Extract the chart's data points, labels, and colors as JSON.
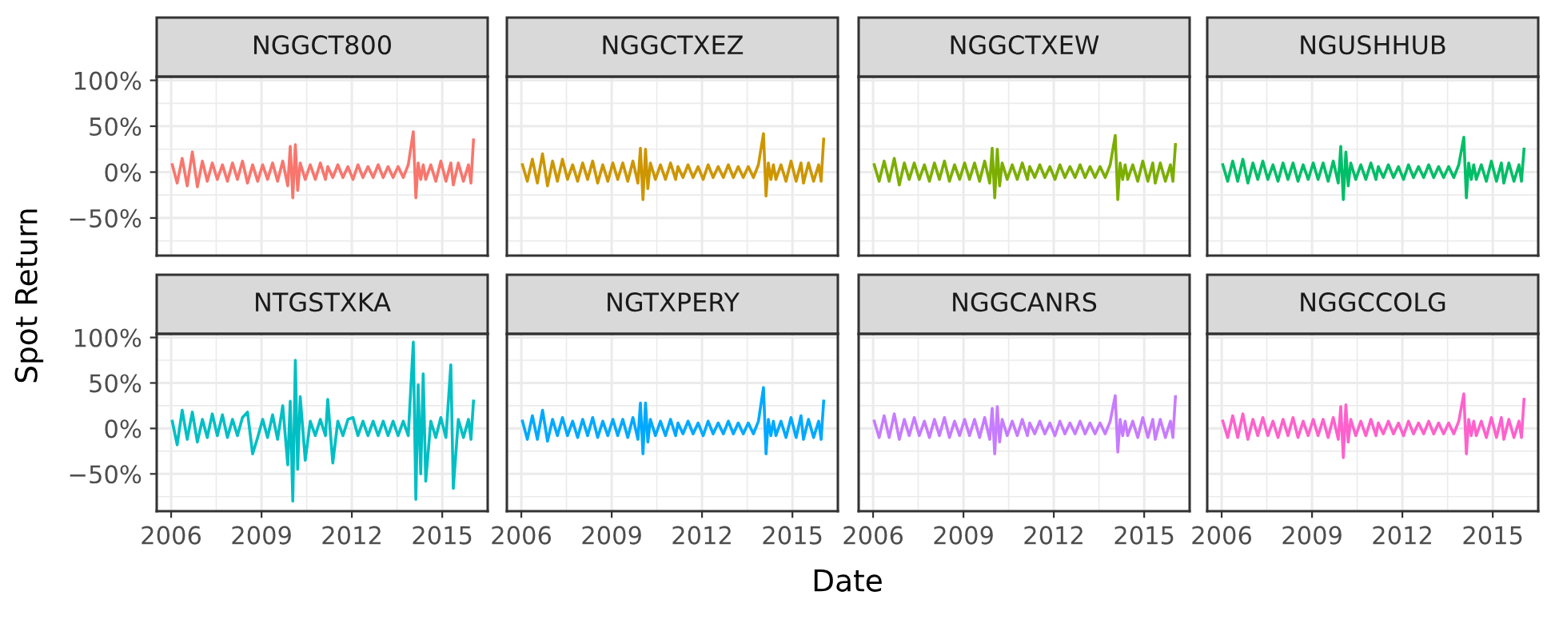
{
  "chart_data": [
    {
      "type": "line",
      "title": "NGGCT800",
      "ylabel": "Spot Return",
      "grid": true,
      "tick_labels": "y",
      "xlim": [
        "2005-07-10",
        "2016-07-05"
      ],
      "ylim": [
        -91,
        104
      ],
      "xticks": [
        "2006",
        {
          "value": "2007-07-02",
          "label": null
        },
        "2009",
        {
          "value": "2010-07-02",
          "label": null
        },
        "2012",
        {
          "value": "2013-07-02",
          "label": null
        },
        "2015"
      ],
      "yticks": [
        {
          "value": -75,
          "label": null
        },
        {
          "value": -50,
          "label": "−50%"
        },
        {
          "value": -25,
          "label": null
        },
        {
          "value": 0,
          "label": "0%"
        },
        {
          "value": 25,
          "label": null
        },
        {
          "value": 50,
          "label": "50%"
        },
        {
          "value": 75,
          "label": null
        },
        {
          "value": 100,
          "label": "100%"
        }
      ],
      "x": [
        "2006-01",
        "2006-03",
        "2006-05",
        "2006-07",
        "2006-09",
        "2006-11",
        "2007-01",
        "2007-03",
        "2007-05",
        "2007-07",
        "2007-09",
        "2007-11",
        "2008-01",
        "2008-03",
        "2008-05",
        "2008-07",
        "2008-09",
        "2008-11",
        "2009-01",
        "2009-03",
        "2009-05",
        "2009-07",
        "2009-09",
        "2009-11",
        "2009-12",
        "2010-01",
        "2010-02",
        "2010-03",
        "2010-04",
        "2010-06",
        "2010-08",
        "2010-10",
        "2010-12",
        "2011-02",
        "2011-03",
        "2011-05",
        "2011-07",
        "2011-09",
        "2011-11",
        "2012-01",
        "2012-03",
        "2012-05",
        "2012-07",
        "2012-09",
        "2012-11",
        "2013-01",
        "2013-03",
        "2013-05",
        "2013-07",
        "2013-09",
        "2013-11",
        "2014-01",
        "2014-02",
        "2014-03",
        "2014-04",
        "2014-05",
        "2014-06",
        "2014-08",
        "2014-10",
        "2014-12",
        "2015-02",
        "2015-04",
        "2015-05",
        "2015-07",
        "2015-09",
        "2015-11",
        "2015-12",
        "2016-01"
      ],
      "series": [
        {
          "color": "#f8766d",
          "values": [
            8,
            -12,
            15,
            -15,
            22,
            -16,
            12,
            -10,
            10,
            -8,
            8,
            -10,
            10,
            -8,
            12,
            -12,
            8,
            -10,
            8,
            -8,
            10,
            -10,
            12,
            -15,
            28,
            -28,
            30,
            -20,
            10,
            -8,
            8,
            -8,
            10,
            -8,
            6,
            -6,
            8,
            -6,
            6,
            -8,
            8,
            -6,
            6,
            -6,
            8,
            -6,
            6,
            -6,
            6,
            -6,
            8,
            44,
            -28,
            10,
            -8,
            8,
            -8,
            8,
            -10,
            12,
            -10,
            10,
            -14,
            10,
            -10,
            8,
            -12,
            35
          ]
        }
      ]
    },
    {
      "type": "line",
      "title": "NGGCTXEZ",
      "grid": true,
      "tick_labels": false,
      "xlim": [
        "2005-07-10",
        "2016-07-05"
      ],
      "ylim": [
        -91,
        104
      ],
      "xticks": [
        "2006",
        {
          "value": "2007-07-02",
          "label": null
        },
        "2009",
        {
          "value": "2010-07-02",
          "label": null
        },
        "2012",
        {
          "value": "2013-07-02",
          "label": null
        },
        "2015"
      ],
      "yticks": [
        {
          "value": -75,
          "label": null
        },
        -50,
        {
          "value": -25,
          "label": null
        },
        0,
        {
          "value": 25,
          "label": null
        },
        50,
        {
          "value": 75,
          "label": null
        },
        100
      ],
      "x": [
        "2006-01",
        "2006-03",
        "2006-05",
        "2006-07",
        "2006-09",
        "2006-11",
        "2007-01",
        "2007-03",
        "2007-05",
        "2007-07",
        "2007-09",
        "2007-11",
        "2008-01",
        "2008-03",
        "2008-05",
        "2008-07",
        "2008-09",
        "2008-11",
        "2009-01",
        "2009-03",
        "2009-05",
        "2009-07",
        "2009-09",
        "2009-11",
        "2009-12",
        "2010-01",
        "2010-02",
        "2010-03",
        "2010-04",
        "2010-06",
        "2010-08",
        "2010-10",
        "2010-12",
        "2011-02",
        "2011-03",
        "2011-05",
        "2011-07",
        "2011-09",
        "2011-11",
        "2012-01",
        "2012-03",
        "2012-05",
        "2012-07",
        "2012-09",
        "2012-11",
        "2013-01",
        "2013-03",
        "2013-05",
        "2013-07",
        "2013-09",
        "2013-11",
        "2014-01",
        "2014-02",
        "2014-03",
        "2014-04",
        "2014-05",
        "2014-06",
        "2014-08",
        "2014-10",
        "2014-12",
        "2015-02",
        "2015-04",
        "2015-05",
        "2015-07",
        "2015-09",
        "2015-11",
        "2015-12",
        "2016-01"
      ],
      "series": [
        {
          "color": "#cd9600",
          "values": [
            8,
            -10,
            14,
            -12,
            20,
            -15,
            12,
            -10,
            14,
            -8,
            8,
            -10,
            10,
            -8,
            12,
            -12,
            8,
            -10,
            10,
            -8,
            10,
            -10,
            12,
            -12,
            26,
            -30,
            25,
            -18,
            10,
            -8,
            8,
            -8,
            10,
            -8,
            6,
            -6,
            8,
            -6,
            6,
            -8,
            8,
            -6,
            6,
            -6,
            8,
            -6,
            6,
            -6,
            6,
            -6,
            8,
            42,
            -26,
            10,
            -8,
            8,
            -8,
            8,
            -10,
            12,
            -10,
            10,
            -12,
            10,
            -10,
            8,
            -10,
            36
          ]
        }
      ]
    },
    {
      "type": "line",
      "title": "NGGCTXEW",
      "grid": true,
      "tick_labels": false,
      "xlim": [
        "2005-07-10",
        "2016-07-05"
      ],
      "ylim": [
        -91,
        104
      ],
      "xticks": [
        "2006",
        {
          "value": "2007-07-02",
          "label": null
        },
        "2009",
        {
          "value": "2010-07-02",
          "label": null
        },
        "2012",
        {
          "value": "2013-07-02",
          "label": null
        },
        "2015"
      ],
      "yticks": [
        {
          "value": -75,
          "label": null
        },
        -50,
        {
          "value": -25,
          "label": null
        },
        0,
        {
          "value": 25,
          "label": null
        },
        50,
        {
          "value": 75,
          "label": null
        },
        100
      ],
      "x": [
        "2006-01",
        "2006-03",
        "2006-05",
        "2006-07",
        "2006-09",
        "2006-11",
        "2007-01",
        "2007-03",
        "2007-05",
        "2007-07",
        "2007-09",
        "2007-11",
        "2008-01",
        "2008-03",
        "2008-05",
        "2008-07",
        "2008-09",
        "2008-11",
        "2009-01",
        "2009-03",
        "2009-05",
        "2009-07",
        "2009-09",
        "2009-11",
        "2009-12",
        "2010-01",
        "2010-02",
        "2010-03",
        "2010-04",
        "2010-06",
        "2010-08",
        "2010-10",
        "2010-12",
        "2011-02",
        "2011-03",
        "2011-05",
        "2011-07",
        "2011-09",
        "2011-11",
        "2012-01",
        "2012-03",
        "2012-05",
        "2012-07",
        "2012-09",
        "2012-11",
        "2013-01",
        "2013-03",
        "2013-05",
        "2013-07",
        "2013-09",
        "2013-11",
        "2014-01",
        "2014-02",
        "2014-03",
        "2014-04",
        "2014-05",
        "2014-06",
        "2014-08",
        "2014-10",
        "2014-12",
        "2015-02",
        "2015-04",
        "2015-05",
        "2015-07",
        "2015-09",
        "2015-11",
        "2015-12",
        "2016-01"
      ],
      "series": [
        {
          "color": "#7cae00",
          "values": [
            8,
            -10,
            12,
            -10,
            15,
            -14,
            10,
            -8,
            10,
            -8,
            8,
            -10,
            10,
            -8,
            12,
            -10,
            8,
            -8,
            10,
            -8,
            10,
            -10,
            12,
            -12,
            26,
            -28,
            25,
            -15,
            10,
            -8,
            8,
            -8,
            10,
            -8,
            6,
            -6,
            8,
            -6,
            6,
            -8,
            8,
            -6,
            6,
            -6,
            8,
            -6,
            6,
            -6,
            6,
            -6,
            8,
            40,
            -30,
            10,
            -8,
            8,
            -8,
            8,
            -10,
            12,
            -10,
            10,
            -12,
            10,
            -10,
            8,
            -10,
            30
          ]
        }
      ]
    },
    {
      "type": "line",
      "title": "NGUSHHUB",
      "grid": true,
      "tick_labels": false,
      "xlim": [
        "2005-07-10",
        "2016-07-05"
      ],
      "ylim": [
        -91,
        104
      ],
      "xticks": [
        "2006",
        {
          "value": "2007-07-02",
          "label": null
        },
        "2009",
        {
          "value": "2010-07-02",
          "label": null
        },
        "2012",
        {
          "value": "2013-07-02",
          "label": null
        },
        "2015"
      ],
      "yticks": [
        {
          "value": -75,
          "label": null
        },
        -50,
        {
          "value": -25,
          "label": null
        },
        0,
        {
          "value": 25,
          "label": null
        },
        50,
        {
          "value": 75,
          "label": null
        },
        100
      ],
      "x": [
        "2006-01",
        "2006-03",
        "2006-05",
        "2006-07",
        "2006-09",
        "2006-11",
        "2007-01",
        "2007-03",
        "2007-05",
        "2007-07",
        "2007-09",
        "2007-11",
        "2008-01",
        "2008-03",
        "2008-05",
        "2008-07",
        "2008-09",
        "2008-11",
        "2009-01",
        "2009-03",
        "2009-05",
        "2009-07",
        "2009-09",
        "2009-11",
        "2009-12",
        "2010-01",
        "2010-02",
        "2010-03",
        "2010-04",
        "2010-06",
        "2010-08",
        "2010-10",
        "2010-12",
        "2011-02",
        "2011-03",
        "2011-05",
        "2011-07",
        "2011-09",
        "2011-11",
        "2012-01",
        "2012-03",
        "2012-05",
        "2012-07",
        "2012-09",
        "2012-11",
        "2013-01",
        "2013-03",
        "2013-05",
        "2013-07",
        "2013-09",
        "2013-11",
        "2014-01",
        "2014-02",
        "2014-03",
        "2014-04",
        "2014-05",
        "2014-06",
        "2014-08",
        "2014-10",
        "2014-12",
        "2015-02",
        "2015-04",
        "2015-05",
        "2015-07",
        "2015-09",
        "2015-11",
        "2015-12",
        "2016-01"
      ],
      "series": [
        {
          "color": "#00be67",
          "values": [
            8,
            -10,
            12,
            -10,
            14,
            -12,
            10,
            -8,
            12,
            -8,
            8,
            -10,
            10,
            -8,
            10,
            -10,
            8,
            -8,
            10,
            -8,
            10,
            -10,
            12,
            -12,
            28,
            -30,
            22,
            -15,
            10,
            -8,
            8,
            -8,
            10,
            -8,
            6,
            -6,
            8,
            -6,
            6,
            -8,
            8,
            -6,
            6,
            -6,
            8,
            -6,
            6,
            -6,
            6,
            -6,
            8,
            38,
            -28,
            10,
            -8,
            8,
            -8,
            8,
            -10,
            12,
            -10,
            10,
            -12,
            10,
            -10,
            8,
            -10,
            25
          ]
        }
      ]
    },
    {
      "type": "line",
      "title": "NTGSTXKA",
      "grid": true,
      "xlim": [
        "2005-07-10",
        "2016-07-05"
      ],
      "ylim": [
        -91,
        104
      ],
      "xticks": [
        "2006",
        {
          "value": "2007-07-02",
          "label": null
        },
        "2009",
        {
          "value": "2010-07-02",
          "label": null
        },
        "2012",
        {
          "value": "2013-07-02",
          "label": null
        },
        "2015"
      ],
      "yticks": [
        {
          "value": -75,
          "label": null
        },
        {
          "value": -50,
          "label": "−50%"
        },
        {
          "value": -25,
          "label": null
        },
        {
          "value": 0,
          "label": "0%"
        },
        {
          "value": 25,
          "label": null
        },
        {
          "value": 50,
          "label": "50%"
        },
        {
          "value": 75,
          "label": null
        },
        {
          "value": 100,
          "label": "100%"
        }
      ],
      "x": [
        "2006-01",
        "2006-03",
        "2006-05",
        "2006-07",
        "2006-09",
        "2006-11",
        "2007-01",
        "2007-03",
        "2007-05",
        "2007-07",
        "2007-09",
        "2007-11",
        "2008-01",
        "2008-03",
        "2008-05",
        "2008-07",
        "2008-09",
        "2008-11",
        "2009-01",
        "2009-03",
        "2009-05",
        "2009-07",
        "2009-09",
        "2009-11",
        "2009-12",
        "2010-01",
        "2010-02",
        "2010-03",
        "2010-04",
        "2010-06",
        "2010-08",
        "2010-10",
        "2010-12",
        "2011-02",
        "2011-03",
        "2011-05",
        "2011-07",
        "2011-09",
        "2011-11",
        "2012-01",
        "2012-03",
        "2012-05",
        "2012-07",
        "2012-09",
        "2012-11",
        "2013-01",
        "2013-03",
        "2013-05",
        "2013-07",
        "2013-09",
        "2013-11",
        "2014-01",
        "2014-02",
        "2014-03",
        "2014-04",
        "2014-05",
        "2014-06",
        "2014-08",
        "2014-10",
        "2014-12",
        "2015-02",
        "2015-04",
        "2015-05",
        "2015-07",
        "2015-09",
        "2015-11",
        "2015-12",
        "2016-01"
      ],
      "series": [
        {
          "color": "#00bfc4",
          "values": [
            8,
            -18,
            20,
            -12,
            18,
            -15,
            10,
            -10,
            16,
            -8,
            15,
            -10,
            10,
            -8,
            12,
            18,
            -28,
            -10,
            10,
            -10,
            15,
            -12,
            25,
            -40,
            30,
            -80,
            75,
            -45,
            35,
            -35,
            8,
            -8,
            10,
            -8,
            32,
            -38,
            8,
            -8,
            10,
            12,
            -8,
            8,
            -8,
            8,
            -8,
            8,
            -8,
            8,
            -8,
            8,
            -8,
            95,
            -78,
            48,
            -50,
            60,
            -58,
            8,
            -10,
            12,
            -10,
            70,
            -66,
            10,
            -10,
            10,
            -12,
            30
          ]
        }
      ]
    },
    {
      "type": "line",
      "title": "NGTXPERY",
      "xlabel": "Date",
      "grid": true,
      "tick_labels": "x",
      "xlim": [
        "2005-07-10",
        "2016-07-05"
      ],
      "ylim": [
        -91,
        104
      ],
      "xticks": [
        "2006",
        {
          "value": "2007-07-02",
          "label": null
        },
        "2009",
        {
          "value": "2010-07-02",
          "label": null
        },
        "2012",
        {
          "value": "2013-07-02",
          "label": null
        },
        "2015"
      ],
      "yticks": [
        {
          "value": -75,
          "label": null
        },
        -50,
        {
          "value": -25,
          "label": null
        },
        0,
        {
          "value": 25,
          "label": null
        },
        50,
        {
          "value": 75,
          "label": null
        },
        100
      ],
      "x": [
        "2006-01",
        "2006-03",
        "2006-05",
        "2006-07",
        "2006-09",
        "2006-11",
        "2007-01",
        "2007-03",
        "2007-05",
        "2007-07",
        "2007-09",
        "2007-11",
        "2008-01",
        "2008-03",
        "2008-05",
        "2008-07",
        "2008-09",
        "2008-11",
        "2009-01",
        "2009-03",
        "2009-05",
        "2009-07",
        "2009-09",
        "2009-11",
        "2009-12",
        "2010-01",
        "2010-02",
        "2010-03",
        "2010-04",
        "2010-06",
        "2010-08",
        "2010-10",
        "2010-12",
        "2011-02",
        "2011-03",
        "2011-05",
        "2011-07",
        "2011-09",
        "2011-11",
        "2012-01",
        "2012-03",
        "2012-05",
        "2012-07",
        "2012-09",
        "2012-11",
        "2013-01",
        "2013-03",
        "2013-05",
        "2013-07",
        "2013-09",
        "2013-11",
        "2014-01",
        "2014-02",
        "2014-03",
        "2014-04",
        "2014-05",
        "2014-06",
        "2014-08",
        "2014-10",
        "2014-12",
        "2015-02",
        "2015-04",
        "2015-05",
        "2015-07",
        "2015-09",
        "2015-11",
        "2015-12",
        "2016-01"
      ],
      "series": [
        {
          "color": "#00a9ff",
          "values": [
            8,
            -12,
            14,
            -12,
            20,
            -14,
            10,
            -8,
            12,
            -8,
            8,
            -10,
            10,
            -8,
            12,
            -10,
            8,
            -8,
            10,
            -8,
            10,
            -10,
            12,
            -12,
            28,
            -28,
            28,
            -15,
            10,
            -8,
            8,
            -8,
            10,
            -8,
            6,
            -6,
            8,
            -6,
            6,
            -8,
            8,
            -6,
            6,
            -6,
            8,
            -6,
            6,
            -6,
            6,
            -6,
            8,
            45,
            -28,
            10,
            -8,
            8,
            -8,
            8,
            -10,
            12,
            -10,
            14,
            -12,
            10,
            -10,
            8,
            -12,
            30
          ]
        }
      ]
    },
    {
      "type": "line",
      "title": "NGGCANRS",
      "grid": true,
      "tick_labels": "x",
      "xlim": [
        "2005-07-10",
        "2016-07-05"
      ],
      "ylim": [
        -91,
        104
      ],
      "xticks": [
        "2006",
        {
          "value": "2007-07-02",
          "label": null
        },
        "2009",
        {
          "value": "2010-07-02",
          "label": null
        },
        "2012",
        {
          "value": "2013-07-02",
          "label": null
        },
        "2015"
      ],
      "yticks": [
        {
          "value": -75,
          "label": null
        },
        -50,
        {
          "value": -25,
          "label": null
        },
        0,
        {
          "value": 25,
          "label": null
        },
        50,
        {
          "value": 75,
          "label": null
        },
        100
      ],
      "x": [
        "2006-01",
        "2006-03",
        "2006-05",
        "2006-07",
        "2006-09",
        "2006-11",
        "2007-01",
        "2007-03",
        "2007-05",
        "2007-07",
        "2007-09",
        "2007-11",
        "2008-01",
        "2008-03",
        "2008-05",
        "2008-07",
        "2008-09",
        "2008-11",
        "2009-01",
        "2009-03",
        "2009-05",
        "2009-07",
        "2009-09",
        "2009-11",
        "2009-12",
        "2010-01",
        "2010-02",
        "2010-03",
        "2010-04",
        "2010-06",
        "2010-08",
        "2010-10",
        "2010-12",
        "2011-02",
        "2011-03",
        "2011-05",
        "2011-07",
        "2011-09",
        "2011-11",
        "2012-01",
        "2012-03",
        "2012-05",
        "2012-07",
        "2012-09",
        "2012-11",
        "2013-01",
        "2013-03",
        "2013-05",
        "2013-07",
        "2013-09",
        "2013-11",
        "2014-01",
        "2014-02",
        "2014-03",
        "2014-04",
        "2014-05",
        "2014-06",
        "2014-08",
        "2014-10",
        "2014-12",
        "2015-02",
        "2015-04",
        "2015-05",
        "2015-07",
        "2015-09",
        "2015-11",
        "2015-12",
        "2016-01"
      ],
      "series": [
        {
          "color": "#c77cff",
          "values": [
            8,
            -10,
            14,
            -10,
            16,
            -12,
            10,
            -8,
            12,
            -8,
            8,
            -10,
            10,
            -8,
            12,
            -10,
            8,
            -8,
            10,
            -8,
            10,
            -10,
            12,
            -12,
            22,
            -28,
            24,
            -15,
            10,
            -8,
            8,
            -8,
            10,
            -8,
            6,
            -6,
            8,
            -6,
            6,
            -8,
            8,
            -6,
            6,
            -6,
            8,
            -6,
            6,
            -6,
            6,
            -6,
            8,
            36,
            -26,
            10,
            -8,
            8,
            -8,
            8,
            -10,
            12,
            -10,
            10,
            -12,
            10,
            -10,
            8,
            -10,
            35
          ]
        }
      ]
    },
    {
      "type": "line",
      "title": "NGGCCOLG",
      "grid": true,
      "tick_labels": "x",
      "xlim": [
        "2005-07-10",
        "2016-07-05"
      ],
      "ylim": [
        -91,
        104
      ],
      "xticks": [
        "2006",
        {
          "value": "2007-07-02",
          "label": null
        },
        "2009",
        {
          "value": "2010-07-02",
          "label": null
        },
        "2012",
        {
          "value": "2013-07-02",
          "label": null
        },
        "2015"
      ],
      "yticks": [
        {
          "value": -75,
          "label": null
        },
        -50,
        {
          "value": -25,
          "label": null
        },
        0,
        {
          "value": 25,
          "label": null
        },
        50,
        {
          "value": 75,
          "label": null
        },
        100
      ],
      "x": [
        "2006-01",
        "2006-03",
        "2006-05",
        "2006-07",
        "2006-09",
        "2006-11",
        "2007-01",
        "2007-03",
        "2007-05",
        "2007-07",
        "2007-09",
        "2007-11",
        "2008-01",
        "2008-03",
        "2008-05",
        "2008-07",
        "2008-09",
        "2008-11",
        "2009-01",
        "2009-03",
        "2009-05",
        "2009-07",
        "2009-09",
        "2009-11",
        "2009-12",
        "2010-01",
        "2010-02",
        "2010-03",
        "2010-04",
        "2010-06",
        "2010-08",
        "2010-10",
        "2010-12",
        "2011-02",
        "2011-03",
        "2011-05",
        "2011-07",
        "2011-09",
        "2011-11",
        "2012-01",
        "2012-03",
        "2012-05",
        "2012-07",
        "2012-09",
        "2012-11",
        "2013-01",
        "2013-03",
        "2013-05",
        "2013-07",
        "2013-09",
        "2013-11",
        "2014-01",
        "2014-02",
        "2014-03",
        "2014-04",
        "2014-05",
        "2014-06",
        "2014-08",
        "2014-10",
        "2014-12",
        "2015-02",
        "2015-04",
        "2015-05",
        "2015-07",
        "2015-09",
        "2015-11",
        "2015-12",
        "2016-01"
      ],
      "series": [
        {
          "color": "#ff61cc",
          "values": [
            8,
            -10,
            14,
            -10,
            16,
            -12,
            10,
            -8,
            12,
            -8,
            8,
            -10,
            10,
            -8,
            12,
            -10,
            8,
            -8,
            10,
            -8,
            10,
            -10,
            12,
            -12,
            24,
            -32,
            26,
            -15,
            10,
            -8,
            8,
            -8,
            10,
            -8,
            6,
            -6,
            8,
            -6,
            6,
            -8,
            8,
            -6,
            6,
            -6,
            8,
            -6,
            6,
            -6,
            6,
            -6,
            8,
            38,
            -28,
            10,
            -8,
            8,
            -8,
            8,
            -10,
            12,
            -10,
            12,
            -12,
            10,
            -10,
            8,
            -10,
            32
          ]
        }
      ]
    }
  ]
}
